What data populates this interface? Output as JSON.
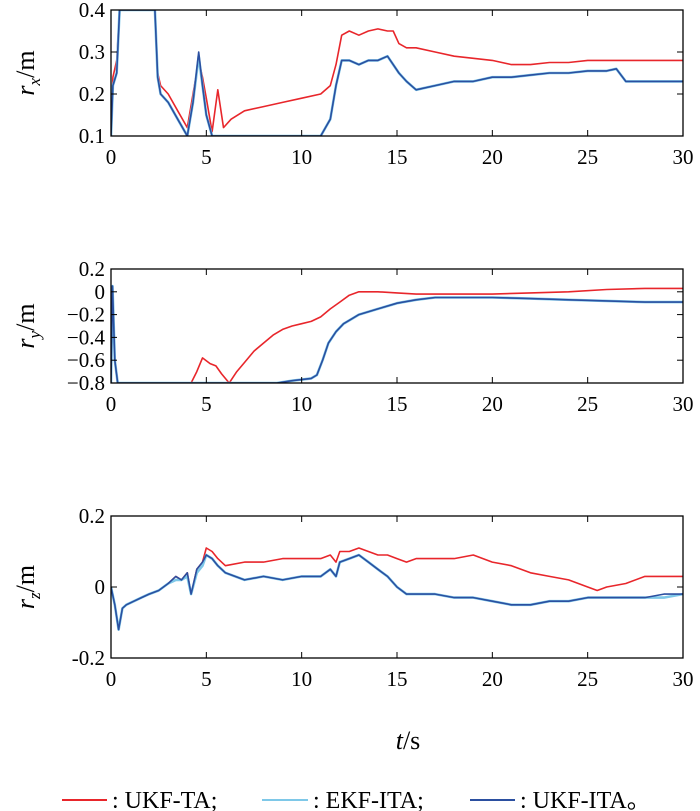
{
  "figure": {
    "xlabel_var": "t",
    "xlabel_unit": "/s",
    "legend": [
      {
        "label": ": UKF-TA;",
        "color": "#e8262b"
      },
      {
        "label": ": EKF-ITA;",
        "color": "#7ec8e8"
      },
      {
        "label": ": UKF-ITA。",
        "color": "#2b4fa0"
      }
    ]
  },
  "chart_data": [
    {
      "type": "line",
      "ylabel_var": "r",
      "ylabel_sub": "x",
      "ylabel_unit": "/m",
      "xlim": [
        0,
        30
      ],
      "ylim": [
        0.1,
        0.4
      ],
      "xticks": [
        "0",
        "5",
        "10",
        "15",
        "20",
        "25",
        "30"
      ],
      "yticks": [
        "0.1",
        "0.2",
        "0.3",
        "0.4"
      ],
      "ytick_values": [
        0.1,
        0.2,
        0.3,
        0.4
      ],
      "grid": false,
      "series": [
        {
          "name": "UKF-TA",
          "color": "#e8262b",
          "x": [
            0,
            0.1,
            0.3,
            0.45,
            0.6,
            2.3,
            2.45,
            2.6,
            3.0,
            3.5,
            4.0,
            4.3,
            4.6,
            4.8,
            5.0,
            5.3,
            5.6,
            5.9,
            6.3,
            7,
            8,
            9,
            10,
            11,
            11.5,
            11.8,
            12.1,
            12.5,
            13,
            13.5,
            14,
            14.5,
            14.8,
            15.1,
            15.5,
            16,
            17,
            18,
            19,
            20,
            21,
            22,
            23,
            24,
            25,
            26,
            27,
            28,
            29,
            30
          ],
          "y": [
            0.1,
            0.24,
            0.28,
            0.4,
            0.4,
            0.4,
            0.25,
            0.22,
            0.2,
            0.16,
            0.12,
            0.2,
            0.28,
            0.24,
            0.19,
            0.11,
            0.21,
            0.12,
            0.14,
            0.16,
            0.17,
            0.18,
            0.19,
            0.2,
            0.22,
            0.27,
            0.34,
            0.35,
            0.34,
            0.35,
            0.355,
            0.35,
            0.35,
            0.32,
            0.31,
            0.31,
            0.3,
            0.29,
            0.285,
            0.28,
            0.27,
            0.27,
            0.275,
            0.275,
            0.28,
            0.28,
            0.28,
            0.28,
            0.28,
            0.28
          ]
        },
        {
          "name": "EKF-ITA",
          "color": "#7ec8e8",
          "x": [
            0,
            0.1,
            0.3,
            0.45,
            0.6,
            2.3,
            2.45,
            2.6,
            3.0,
            3.5,
            4.0,
            4.3,
            4.6,
            4.8,
            5.0,
            5.3,
            11,
            11.5,
            11.8,
            12.1,
            12.5,
            13,
            13.5,
            14,
            14.5,
            14.8,
            15.1,
            15.5,
            16,
            17,
            18,
            19,
            20,
            21,
            22,
            23,
            24,
            25,
            26,
            26.5,
            27,
            28,
            29,
            30
          ],
          "y": [
            0.1,
            0.22,
            0.25,
            0.4,
            0.4,
            0.4,
            0.24,
            0.2,
            0.18,
            0.14,
            0.1,
            0.18,
            0.29,
            0.22,
            0.15,
            0.1,
            0.1,
            0.14,
            0.22,
            0.28,
            0.28,
            0.27,
            0.28,
            0.28,
            0.29,
            0.27,
            0.25,
            0.23,
            0.21,
            0.22,
            0.23,
            0.23,
            0.24,
            0.24,
            0.245,
            0.25,
            0.25,
            0.255,
            0.255,
            0.26,
            0.23,
            0.23,
            0.23,
            0.23
          ]
        },
        {
          "name": "UKF-ITA",
          "color": "#2b4fa0",
          "x": [
            0,
            0.1,
            0.3,
            0.45,
            0.6,
            2.3,
            2.45,
            2.6,
            3.0,
            3.5,
            4.0,
            4.3,
            4.6,
            4.8,
            5.0,
            5.3,
            11,
            11.5,
            11.8,
            12.1,
            12.5,
            13,
            13.5,
            14,
            14.5,
            14.8,
            15.1,
            15.5,
            16,
            17,
            18,
            19,
            20,
            21,
            22,
            23,
            24,
            25,
            26,
            26.5,
            27,
            28,
            29,
            30
          ],
          "y": [
            0.1,
            0.22,
            0.25,
            0.4,
            0.4,
            0.4,
            0.24,
            0.2,
            0.18,
            0.14,
            0.1,
            0.18,
            0.3,
            0.22,
            0.15,
            0.1,
            0.1,
            0.14,
            0.22,
            0.28,
            0.28,
            0.27,
            0.28,
            0.28,
            0.29,
            0.27,
            0.25,
            0.23,
            0.21,
            0.22,
            0.23,
            0.23,
            0.24,
            0.24,
            0.245,
            0.25,
            0.25,
            0.255,
            0.255,
            0.26,
            0.23,
            0.23,
            0.23,
            0.23
          ]
        }
      ]
    },
    {
      "type": "line",
      "ylabel_var": "r",
      "ylabel_sub": "y",
      "ylabel_unit": "/m",
      "xlim": [
        0,
        30
      ],
      "ylim": [
        -0.8,
        0.2
      ],
      "xticks": [
        "0",
        "5",
        "10",
        "15",
        "20",
        "25",
        "30"
      ],
      "yticks": [
        "0.2",
        "0",
        "−0.2",
        "−0.4",
        "−0.6",
        "−0.8"
      ],
      "ytick_values": [
        0.2,
        0,
        -0.2,
        -0.4,
        -0.6,
        -0.8
      ],
      "grid": false,
      "series": [
        {
          "name": "UKF-TA",
          "color": "#e8262b",
          "x": [
            0,
            0.08,
            0.2,
            0.35,
            4.2,
            4.5,
            4.8,
            5.2,
            5.5,
            5.8,
            6.2,
            6.6,
            7,
            7.5,
            8,
            8.5,
            9,
            9.5,
            10,
            10.5,
            11,
            11.5,
            12,
            12.5,
            13,
            14,
            15,
            16,
            17,
            18,
            20,
            22,
            24,
            26,
            28,
            30
          ],
          "y": [
            -0.8,
            0.05,
            -0.6,
            -0.8,
            -0.8,
            -0.7,
            -0.58,
            -0.63,
            -0.65,
            -0.72,
            -0.8,
            -0.7,
            -0.62,
            -0.52,
            -0.45,
            -0.38,
            -0.33,
            -0.3,
            -0.28,
            -0.26,
            -0.22,
            -0.15,
            -0.09,
            -0.03,
            0.0,
            0.0,
            -0.01,
            -0.02,
            -0.02,
            -0.02,
            -0.02,
            -0.01,
            0.0,
            0.02,
            0.03,
            0.03
          ]
        },
        {
          "name": "EKF-ITA",
          "color": "#7ec8e8",
          "x": [
            0,
            0.08,
            0.2,
            0.35,
            8.7,
            9.5,
            10,
            10.5,
            10.8,
            11.1,
            11.4,
            11.8,
            12.2,
            12.6,
            13,
            14,
            15,
            16,
            17,
            18,
            20,
            22,
            24,
            26,
            28,
            30
          ],
          "y": [
            -0.8,
            0.05,
            -0.6,
            -0.8,
            -0.8,
            -0.78,
            -0.77,
            -0.76,
            -0.73,
            -0.6,
            -0.45,
            -0.35,
            -0.28,
            -0.24,
            -0.2,
            -0.15,
            -0.1,
            -0.07,
            -0.05,
            -0.05,
            -0.05,
            -0.06,
            -0.07,
            -0.08,
            -0.09,
            -0.09
          ]
        },
        {
          "name": "UKF-ITA",
          "color": "#2b4fa0",
          "x": [
            0,
            0.08,
            0.2,
            0.35,
            8.7,
            9.5,
            10,
            10.5,
            10.8,
            11.1,
            11.4,
            11.8,
            12.2,
            12.6,
            13,
            14,
            15,
            16,
            17,
            18,
            20,
            22,
            24,
            26,
            28,
            30
          ],
          "y": [
            -0.8,
            0.05,
            -0.6,
            -0.8,
            -0.8,
            -0.78,
            -0.77,
            -0.76,
            -0.73,
            -0.6,
            -0.45,
            -0.35,
            -0.28,
            -0.24,
            -0.2,
            -0.15,
            -0.1,
            -0.07,
            -0.05,
            -0.05,
            -0.05,
            -0.06,
            -0.07,
            -0.08,
            -0.09,
            -0.09
          ]
        }
      ]
    },
    {
      "type": "line",
      "ylabel_var": "r",
      "ylabel_sub": "z",
      "ylabel_unit": "/m",
      "xlim": [
        0,
        30
      ],
      "ylim": [
        -0.2,
        0.2
      ],
      "xticks": [
        "0",
        "5",
        "10",
        "15",
        "20",
        "25",
        "30"
      ],
      "yticks": [
        "0.2",
        "0",
        "-0.2"
      ],
      "ytick_values": [
        0.2,
        0,
        -0.2
      ],
      "grid": false,
      "series": [
        {
          "name": "UKF-TA",
          "color": "#e8262b",
          "x": [
            0,
            0.2,
            0.4,
            0.6,
            0.8,
            1.2,
            1.6,
            2,
            2.5,
            3,
            3.4,
            3.7,
            4,
            4.2,
            4.5,
            4.8,
            5,
            5.3,
            5.6,
            6,
            7,
            8,
            9,
            10,
            11,
            11.5,
            11.8,
            12,
            12.5,
            13,
            13.5,
            14,
            14.5,
            15,
            15.5,
            16,
            17,
            18,
            19,
            20,
            21,
            22,
            23,
            24,
            25,
            25.5,
            26,
            27,
            28,
            29,
            30
          ],
          "y": [
            0.0,
            -0.05,
            -0.12,
            -0.06,
            -0.05,
            -0.04,
            -0.03,
            -0.02,
            -0.01,
            0.01,
            0.03,
            0.02,
            0.04,
            -0.02,
            0.05,
            0.07,
            0.11,
            0.1,
            0.08,
            0.06,
            0.07,
            0.07,
            0.08,
            0.08,
            0.08,
            0.09,
            0.07,
            0.1,
            0.1,
            0.11,
            0.1,
            0.09,
            0.09,
            0.08,
            0.07,
            0.08,
            0.08,
            0.08,
            0.09,
            0.07,
            0.06,
            0.04,
            0.03,
            0.02,
            0.0,
            -0.01,
            0.0,
            0.01,
            0.03,
            0.03,
            0.03
          ]
        },
        {
          "name": "EKF-ITA",
          "color": "#7ec8e8",
          "x": [
            0,
            0.2,
            0.4,
            0.6,
            0.8,
            1.2,
            1.6,
            2,
            2.5,
            3,
            3.4,
            3.7,
            4,
            4.2,
            4.5,
            4.8,
            5,
            5.3,
            5.6,
            6,
            7,
            8,
            9,
            10,
            11,
            11.5,
            11.8,
            12,
            12.5,
            13,
            13.5,
            14,
            14.5,
            15,
            15.5,
            16,
            17,
            18,
            19,
            20,
            21,
            22,
            23,
            24,
            25,
            26,
            27,
            28,
            29,
            30
          ],
          "y": [
            0.0,
            -0.05,
            -0.12,
            -0.06,
            -0.05,
            -0.04,
            -0.03,
            -0.02,
            -0.01,
            0.01,
            0.02,
            0.02,
            0.03,
            -0.02,
            0.04,
            0.06,
            0.09,
            0.08,
            0.06,
            0.04,
            0.02,
            0.03,
            0.02,
            0.03,
            0.03,
            0.05,
            0.03,
            0.07,
            0.08,
            0.09,
            0.07,
            0.05,
            0.03,
            0.0,
            -0.02,
            -0.02,
            -0.02,
            -0.03,
            -0.03,
            -0.04,
            -0.05,
            -0.05,
            -0.04,
            -0.04,
            -0.03,
            -0.03,
            -0.03,
            -0.03,
            -0.03,
            -0.02
          ]
        },
        {
          "name": "UKF-ITA",
          "color": "#2b4fa0",
          "x": [
            0,
            0.2,
            0.4,
            0.6,
            0.8,
            1.2,
            1.6,
            2,
            2.5,
            3,
            3.4,
            3.7,
            4,
            4.2,
            4.5,
            4.8,
            5,
            5.3,
            5.6,
            6,
            7,
            8,
            9,
            10,
            11,
            11.5,
            11.8,
            12,
            12.5,
            13,
            13.5,
            14,
            14.5,
            15,
            15.5,
            16,
            17,
            18,
            19,
            20,
            21,
            22,
            23,
            24,
            25,
            26,
            27,
            28,
            29,
            30
          ],
          "y": [
            0.0,
            -0.05,
            -0.12,
            -0.06,
            -0.05,
            -0.04,
            -0.03,
            -0.02,
            -0.01,
            0.01,
            0.03,
            0.02,
            0.04,
            -0.02,
            0.05,
            0.07,
            0.09,
            0.08,
            0.06,
            0.04,
            0.02,
            0.03,
            0.02,
            0.03,
            0.03,
            0.05,
            0.03,
            0.07,
            0.08,
            0.09,
            0.07,
            0.05,
            0.03,
            0.0,
            -0.02,
            -0.02,
            -0.02,
            -0.03,
            -0.03,
            -0.04,
            -0.05,
            -0.05,
            -0.04,
            -0.04,
            -0.03,
            -0.03,
            -0.03,
            -0.03,
            -0.02,
            -0.02
          ]
        }
      ]
    }
  ]
}
